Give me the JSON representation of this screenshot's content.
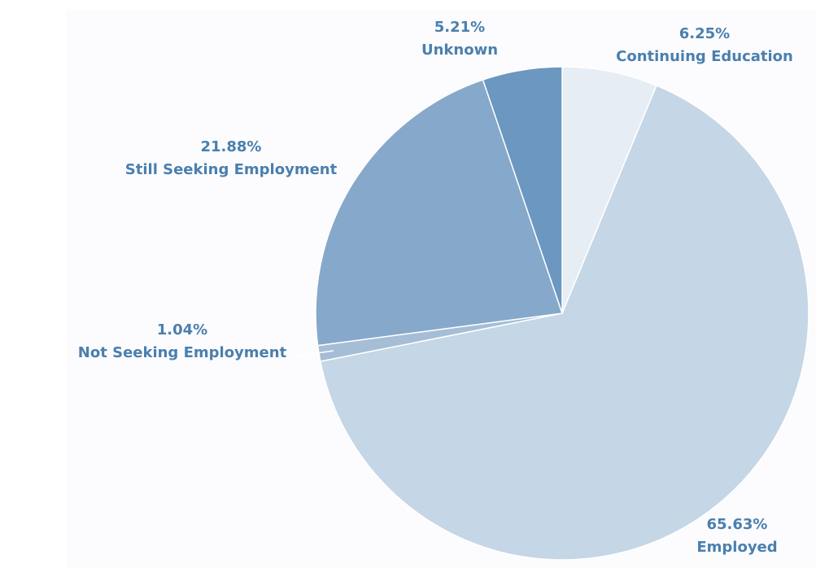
{
  "chart_data": {
    "type": "pie",
    "title": "",
    "start": "12 o'clock",
    "direction": "clockwise",
    "slices": [
      {
        "label": "Continuing Education",
        "value": 6.25,
        "display": "6.25%",
        "color": "#e6edf5"
      },
      {
        "label": "Employed",
        "value": 65.63,
        "display": "65.63%",
        "color": "#c5d6e6"
      },
      {
        "label": "Not Seeking Employment",
        "value": 1.04,
        "display": "1.04%",
        "color": "#a5bed6"
      },
      {
        "label": "Still Seeking Employment",
        "value": 21.88,
        "display": "21.88%",
        "color": "#86a8ca"
      },
      {
        "label": "Unknown",
        "value": 5.21,
        "display": "5.21%",
        "color": "#6b97c0"
      }
    ],
    "label_color": "#4a7fae"
  }
}
